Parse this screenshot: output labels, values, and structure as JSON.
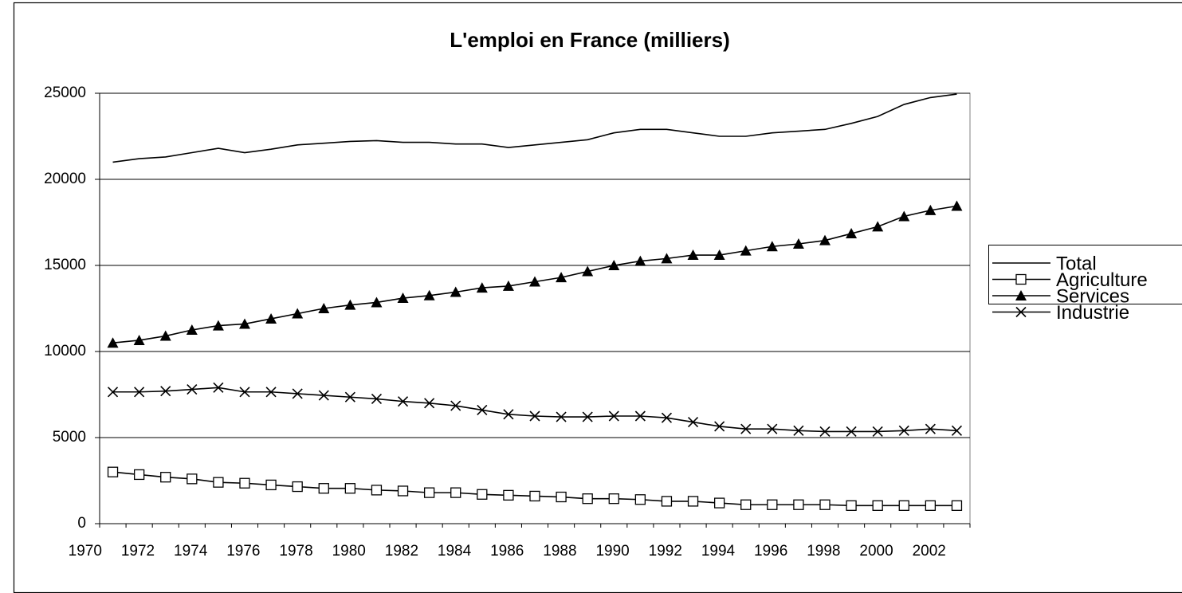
{
  "chart_data": {
    "type": "line",
    "title": "L'emploi en France (milliers)",
    "categories": [
      "1970",
      null,
      "1972",
      null,
      "1974",
      null,
      "1976",
      null,
      "1978",
      null,
      "1980",
      null,
      "1982",
      null,
      "1984",
      null,
      "1986",
      null,
      "1988",
      null,
      "1990",
      null,
      "1992",
      null,
      "1994",
      null,
      "1996",
      null,
      "1998",
      null,
      "2000",
      null,
      "2002"
    ],
    "series": [
      {
        "name": "Total",
        "color": "#000000",
        "marker": "none",
        "values": [
          21000,
          21200,
          21300,
          21550,
          21800,
          21550,
          21750,
          22000,
          22100,
          22200,
          22250,
          22150,
          22150,
          22050,
          22050,
          21850,
          22000,
          22150,
          22300,
          22700,
          22900,
          22900,
          22700,
          22500,
          22500,
          22700,
          22800,
          22900,
          23250,
          23650,
          24350,
          24750,
          24950
        ]
      },
      {
        "name": "Agriculture",
        "color": "#000000",
        "marker": "square",
        "values": [
          3000,
          2850,
          2700,
          2600,
          2400,
          2350,
          2250,
          2150,
          2050,
          2050,
          1950,
          1900,
          1800,
          1800,
          1700,
          1650,
          1600,
          1550,
          1450,
          1450,
          1400,
          1300,
          1300,
          1200,
          1100,
          1100,
          1100,
          1100,
          1050,
          1050,
          1050,
          1050,
          1050
        ]
      },
      {
        "name": "Services",
        "color": "#000000",
        "marker": "triangle",
        "values": [
          10500,
          10650,
          10900,
          11250,
          11500,
          11600,
          11900,
          12200,
          12500,
          12700,
          12850,
          13100,
          13250,
          13450,
          13700,
          13800,
          14050,
          14300,
          14650,
          15000,
          15250,
          15400,
          15600,
          15600,
          15850,
          16100,
          16250,
          16450,
          16850,
          17250,
          17850,
          18200,
          18450
        ]
      },
      {
        "name": "Industrie",
        "color": "#000000",
        "marker": "x",
        "values": [
          7650,
          7650,
          7700,
          7800,
          7900,
          7650,
          7650,
          7550,
          7450,
          7350,
          7250,
          7100,
          7000,
          6850,
          6600,
          6350,
          6250,
          6200,
          6200,
          6250,
          6250,
          6150,
          5900,
          5650,
          5500,
          5500,
          5400,
          5350,
          5350,
          5350,
          5400,
          5500,
          5400
        ]
      }
    ],
    "ylim": [
      0,
      25000
    ],
    "yticks": [
      0,
      5000,
      10000,
      15000,
      20000,
      25000
    ],
    "grid": true,
    "legend": "right"
  }
}
